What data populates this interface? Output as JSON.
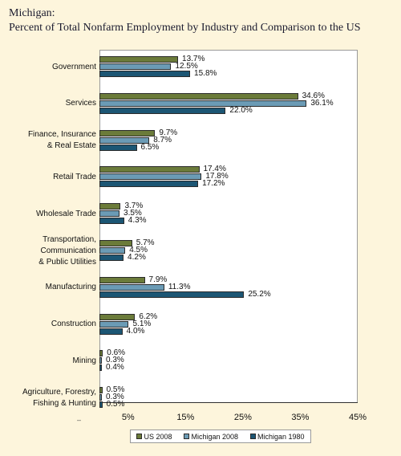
{
  "title_line1": "Michigan:",
  "title_line2": "Percent of Total Nonfarm Employment by Industry and Comparison to the US",
  "colors": {
    "US 2008": "#6b7b3a",
    "Michigan 2008": "#6b9bb5",
    "Michigan 1980": "#1c5674"
  },
  "xtick_minus": "–",
  "chart_data": {
    "type": "bar",
    "orientation": "horizontal",
    "categories": [
      "Government",
      "Services",
      "Finance, Insurance\n& Real Estate",
      "Retail Trade",
      "Wholesale Trade",
      "Transportation,\nCommunication\n& Public Utilities",
      "Manufacturing",
      "Construction",
      "Mining",
      "Agriculture, Forestry,\nFishing & Hunting"
    ],
    "series": [
      {
        "name": "US 2008",
        "values": [
          13.7,
          34.6,
          9.7,
          17.4,
          3.7,
          5.7,
          7.9,
          6.2,
          0.6,
          0.5
        ]
      },
      {
        "name": "Michigan 2008",
        "values": [
          12.5,
          36.1,
          8.7,
          17.8,
          3.5,
          4.5,
          11.3,
          5.1,
          0.3,
          0.3
        ]
      },
      {
        "name": "Michigan 1980",
        "values": [
          15.8,
          22.0,
          6.5,
          17.2,
          4.3,
          4.2,
          25.2,
          4.0,
          0.4,
          0.5
        ]
      }
    ],
    "value_labels": [
      [
        "13.7%",
        "34.6%",
        "9.7%",
        "17.4%",
        "3.7%",
        "5.7%",
        "7.9%",
        "6.2%",
        "0.6%",
        "0.5%"
      ],
      [
        "12.5%",
        "36.1%",
        "8.7%",
        "17.8%",
        "3.5%",
        "4.5%",
        "11.3%",
        "5.1%",
        "0.3%",
        "0.3%"
      ],
      [
        "15.8%",
        "22.0%",
        "6.5%",
        "17.2%",
        "4.3%",
        "4.2%",
        "25.2%",
        "4.0%",
        "0.4%",
        "0.5%"
      ]
    ],
    "xlim": [
      0,
      45
    ],
    "xticks": [
      "5%",
      "15%",
      "25%",
      "35%",
      "45%"
    ],
    "xtick_values": [
      5,
      15,
      25,
      35,
      45
    ],
    "legend_position": "bottom"
  }
}
